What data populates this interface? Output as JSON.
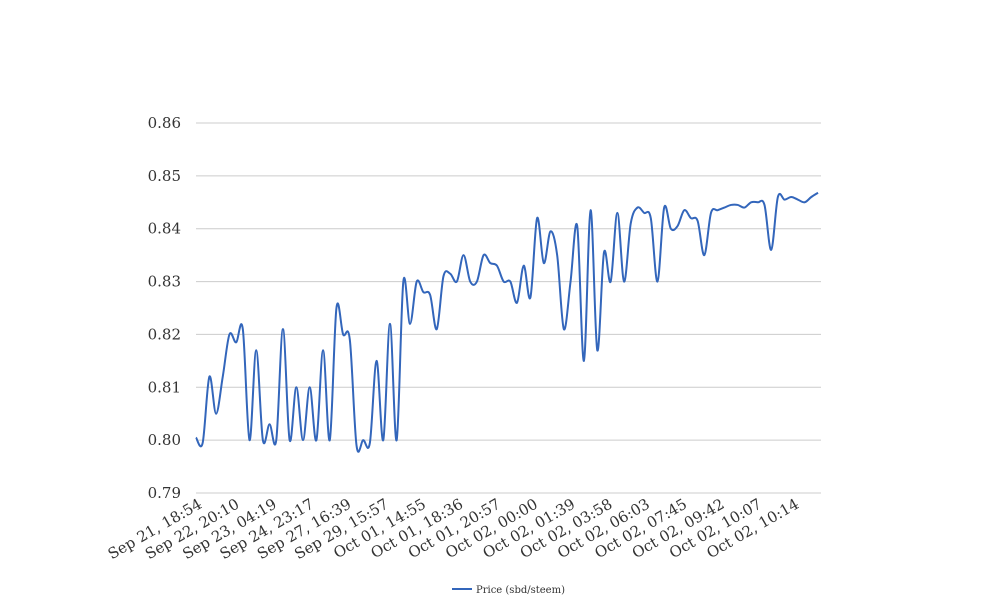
{
  "chart_data": {
    "type": "line",
    "title": "",
    "xlabel": "",
    "ylabel": "",
    "ylim": [
      0.79,
      0.86
    ],
    "yticks": [
      "0.79",
      "0.80",
      "0.81",
      "0.82",
      "0.83",
      "0.84",
      "0.85",
      "0.86"
    ],
    "xtick_labels": [
      "Sep 21, 18:54",
      "Sep 22, 20:10",
      "Sep 23, 04:19",
      "Sep 24, 23:17",
      "Sep 27, 16:39",
      "Sep 29, 15:57",
      "Oct 01, 14:55",
      "Oct 01, 18:36",
      "Oct 01, 20:57",
      "Oct 02, 00:00",
      "Oct 02, 01:39",
      "Oct 02, 03:58",
      "Oct 02, 06:03",
      "Oct 02, 07:45",
      "Oct 02, 09:42",
      "Oct 02, 10:07",
      "Oct 02, 10:14"
    ],
    "grid": true,
    "legend_position": "bottom",
    "colors": {
      "series": "#3366bb",
      "grid": "#cccccc",
      "text": "#333333"
    },
    "series": [
      {
        "name": "Price (sbd/steem)",
        "values": [
          0.8005,
          0.7995,
          0.812,
          0.805,
          0.812,
          0.82,
          0.8185,
          0.821,
          0.8,
          0.817,
          0.8,
          0.803,
          0.8,
          0.821,
          0.8,
          0.81,
          0.8,
          0.81,
          0.8,
          0.817,
          0.8,
          0.825,
          0.82,
          0.819,
          0.799,
          0.8,
          0.7995,
          0.815,
          0.8,
          0.822,
          0.8,
          0.83,
          0.822,
          0.83,
          0.828,
          0.8275,
          0.821,
          0.831,
          0.8315,
          0.83,
          0.835,
          0.83,
          0.83,
          0.835,
          0.8335,
          0.833,
          0.83,
          0.83,
          0.826,
          0.833,
          0.827,
          0.842,
          0.8335,
          0.8395,
          0.835,
          0.821,
          0.83,
          0.8405,
          0.815,
          0.8435,
          0.817,
          0.8355,
          0.83,
          0.843,
          0.83,
          0.841,
          0.844,
          0.843,
          0.842,
          0.83,
          0.844,
          0.84,
          0.8405,
          0.8435,
          0.842,
          0.8415,
          0.835,
          0.843,
          0.8435,
          0.844,
          0.8445,
          0.8445,
          0.844,
          0.845,
          0.845,
          0.8445,
          0.836,
          0.846,
          0.8455,
          0.846,
          0.8455,
          0.845,
          0.846,
          0.8468
        ]
      }
    ]
  }
}
